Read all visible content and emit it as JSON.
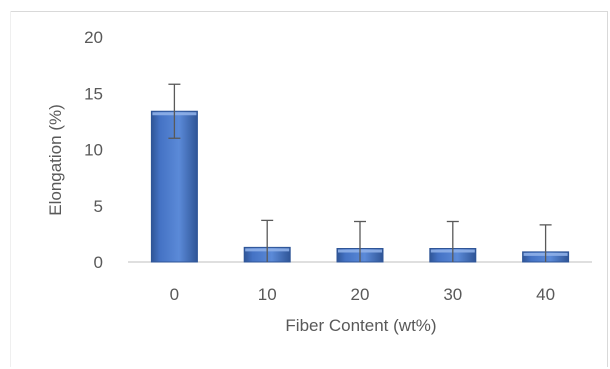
{
  "chart_data": {
    "type": "bar",
    "title": "",
    "xlabel": "Fiber Content (wt%)",
    "ylabel": "Elongation (%)",
    "categories": [
      "0",
      "10",
      "20",
      "30",
      "40"
    ],
    "values": [
      13.4,
      1.3,
      1.2,
      1.2,
      0.9
    ],
    "errors": [
      2.4,
      2.4,
      2.4,
      2.4,
      2.4
    ],
    "ylim": [
      0,
      20
    ],
    "yticks": [
      "0",
      "5",
      "10",
      "15",
      "20"
    ],
    "grid": false,
    "legend": "none",
    "colors": {
      "bar": "#4472c4",
      "bar_dark": "#2f5597",
      "error_bar": "#595959",
      "axis": "#bfbfbf",
      "text": "#595959"
    }
  }
}
